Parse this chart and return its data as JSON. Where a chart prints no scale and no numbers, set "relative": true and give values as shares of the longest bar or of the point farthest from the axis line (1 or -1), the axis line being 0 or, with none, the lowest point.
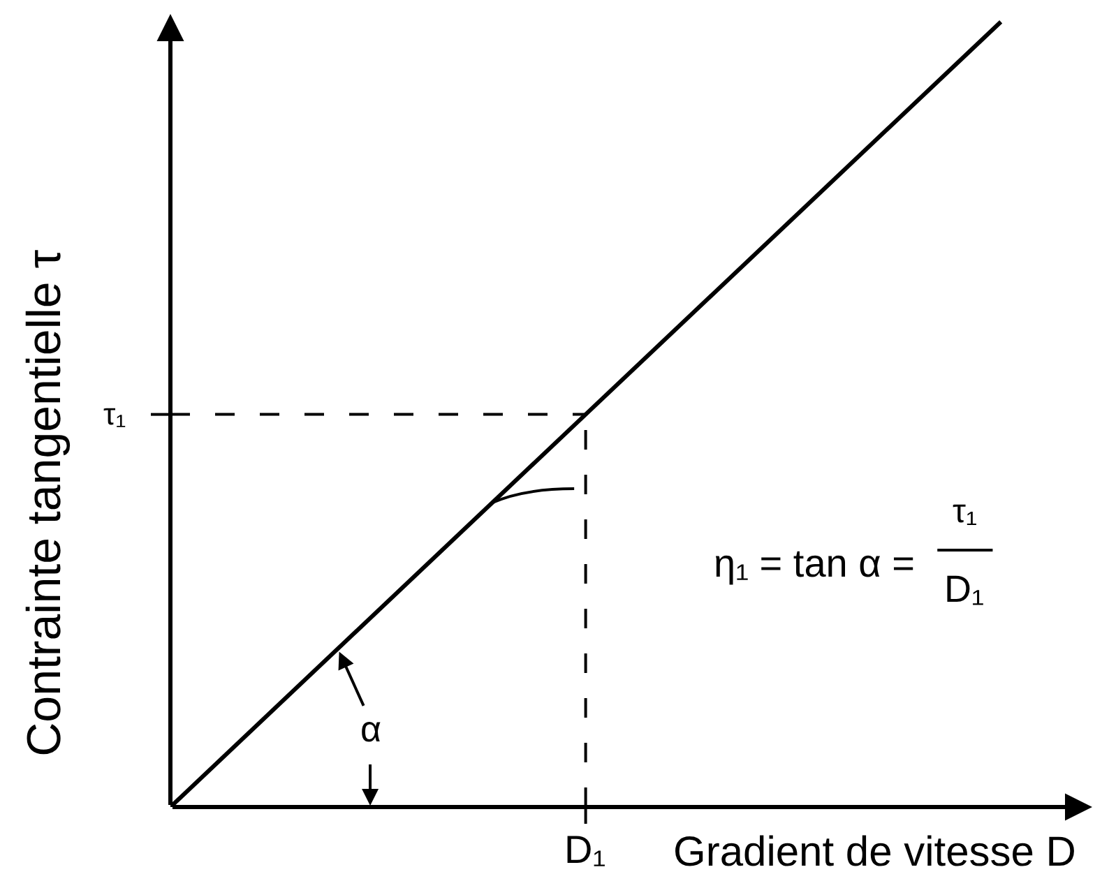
{
  "chart_data": {
    "type": "line",
    "relative": true,
    "xlabel": "Gradient de vitesse D",
    "ylabel": "Contrainte tangentielle τ",
    "categories": [
      null,
      null,
      null
    ],
    "values": [
      0,
      0.5,
      1
    ],
    "color": "#000000",
    "ref_lines": [
      {
        "axis": "y",
        "value": 0.5,
        "label": "τ₁",
        "line_style": "dashed",
        "color": "#000000"
      }
    ],
    "annotations": [
      "τ₁",
      "η₁ = tan α =",
      "D₁",
      "α",
      "D₁"
    ]
  }
}
